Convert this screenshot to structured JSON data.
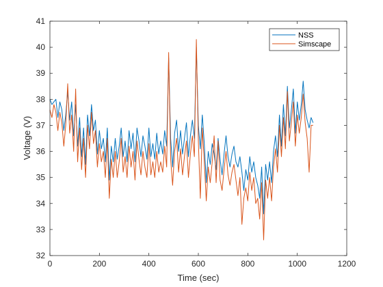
{
  "chart_data": {
    "type": "line",
    "title": "",
    "xlabel": "Time (sec)",
    "ylabel": "Voltage (V)",
    "xlim": [
      0,
      1200
    ],
    "ylim": [
      32,
      41
    ],
    "xticks": [
      0,
      200,
      400,
      600,
      800,
      1000,
      1200
    ],
    "yticks": [
      32,
      33,
      34,
      35,
      36,
      37,
      38,
      39,
      40,
      41
    ],
    "grid": false,
    "legend_position": "top-right",
    "series": [
      {
        "name": "NSS",
        "color": "#0072BD",
        "x": [
          0,
          8,
          16,
          24,
          32,
          40,
          48,
          56,
          64,
          72,
          80,
          88,
          96,
          104,
          112,
          120,
          128,
          136,
          144,
          152,
          160,
          168,
          176,
          184,
          192,
          200,
          208,
          216,
          224,
          232,
          240,
          248,
          256,
          264,
          272,
          280,
          288,
          296,
          304,
          312,
          320,
          328,
          336,
          344,
          352,
          360,
          368,
          376,
          384,
          392,
          400,
          408,
          416,
          424,
          432,
          440,
          448,
          456,
          464,
          472,
          480,
          488,
          496,
          504,
          512,
          520,
          528,
          536,
          544,
          552,
          560,
          568,
          576,
          584,
          592,
          600,
          608,
          616,
          624,
          632,
          640,
          648,
          656,
          664,
          672,
          680,
          688,
          696,
          704,
          712,
          720,
          728,
          736,
          744,
          752,
          760,
          768,
          776,
          784,
          792,
          800,
          808,
          816,
          824,
          832,
          840,
          848,
          856,
          864,
          872,
          880,
          888,
          896,
          904,
          912,
          920,
          928,
          936,
          944,
          952,
          960,
          968,
          976,
          984,
          992,
          1000,
          1008,
          1016,
          1024,
          1032,
          1040,
          1048,
          1056,
          1064
        ],
        "y": [
          38.0,
          37.8,
          37.9,
          38.0,
          37.3,
          37.9,
          37.6,
          36.8,
          37.4,
          38.3,
          37.2,
          37.9,
          36.6,
          37.8,
          36.2,
          37.3,
          35.8,
          36.9,
          35.5,
          37.4,
          36.6,
          37.8,
          36.8,
          37.2,
          35.9,
          36.8,
          36.1,
          36.5,
          35.6,
          36.9,
          34.9,
          36.2,
          35.6,
          36.5,
          35.7,
          36.2,
          36.9,
          35.8,
          36.4,
          35.6,
          36.8,
          36.1,
          36.7,
          35.6,
          36.9,
          36.4,
          35.8,
          36.6,
          36.2,
          35.7,
          36.9,
          35.8,
          36.3,
          35.7,
          36.7,
          35.9,
          36.4,
          35.9,
          36.8,
          36.2,
          39.6,
          36.5,
          35.4,
          36.7,
          37.2,
          36.0,
          36.8,
          35.9,
          36.5,
          37.1,
          35.8,
          36.6,
          37.2,
          36.5,
          40.0,
          37.0,
          36.1,
          37.4,
          36.3,
          34.8,
          36.0,
          35.5,
          36.3,
          35.9,
          35.3,
          36.5,
          35.7,
          35.1,
          35.9,
          36.6,
          35.8,
          35.4,
          35.9,
          36.2,
          35.6,
          35.4,
          35.8,
          35.2,
          34.5,
          35.3,
          34.9,
          35.8,
          35.2,
          35.6,
          35.0,
          34.7,
          34.2,
          35.4,
          33.6,
          35.5,
          34.9,
          35.6,
          34.8,
          36.0,
          36.6,
          35.8,
          37.4,
          36.2,
          37.8,
          36.6,
          38.5,
          36.9,
          37.6,
          38.4,
          36.7,
          37.9,
          37.2,
          37.8,
          38.7,
          37.6,
          37.2,
          36.9,
          37.3,
          37.1
        ],
        "note_unused": ""
      },
      {
        "name": "Simscape",
        "color": "#D95319",
        "x": [
          0,
          8,
          16,
          24,
          32,
          40,
          48,
          56,
          64,
          72,
          80,
          88,
          96,
          104,
          112,
          120,
          128,
          136,
          144,
          152,
          160,
          168,
          176,
          184,
          192,
          200,
          208,
          216,
          224,
          232,
          240,
          248,
          256,
          264,
          272,
          280,
          288,
          296,
          304,
          312,
          320,
          328,
          336,
          344,
          352,
          360,
          368,
          376,
          384,
          392,
          400,
          408,
          416,
          424,
          432,
          440,
          448,
          456,
          464,
          472,
          480,
          488,
          496,
          504,
          512,
          520,
          528,
          536,
          544,
          552,
          560,
          568,
          576,
          584,
          592,
          600,
          608,
          616,
          624,
          632,
          640,
          648,
          656,
          664,
          672,
          680,
          688,
          696,
          704,
          712,
          720,
          728,
          736,
          744,
          752,
          760,
          768,
          776,
          784,
          792,
          800,
          808,
          816,
          824,
          832,
          840,
          848,
          856,
          864,
          872,
          880,
          888,
          896,
          904,
          912,
          920,
          928,
          936,
          944,
          952,
          960,
          968,
          976,
          984,
          992,
          1000,
          1008,
          1016,
          1024,
          1032,
          1040,
          1048,
          1056,
          1064
        ],
        "y": [
          37.6,
          37.3,
          37.8,
          37.5,
          36.8,
          37.5,
          37.1,
          36.2,
          37.0,
          38.6,
          36.7,
          37.4,
          36.0,
          38.4,
          35.6,
          36.9,
          35.3,
          36.5,
          35.0,
          37.0,
          36.1,
          37.5,
          36.3,
          36.8,
          35.4,
          36.3,
          35.6,
          36.0,
          35.0,
          36.5,
          34.2,
          35.7,
          35.0,
          36.0,
          35.0,
          35.6,
          36.5,
          35.2,
          35.8,
          35.0,
          36.2,
          35.4,
          36.0,
          34.9,
          36.4,
          35.7,
          35.1,
          36.0,
          35.4,
          35.0,
          36.3,
          35.1,
          35.6,
          35.0,
          36.0,
          35.2,
          35.6,
          35.2,
          36.2,
          35.4,
          39.8,
          35.7,
          34.7,
          36.0,
          36.5,
          35.2,
          36.1,
          35.1,
          35.8,
          36.4,
          35.0,
          35.9,
          36.6,
          35.8,
          40.3,
          36.4,
          34.2,
          36.9,
          35.6,
          34.1,
          35.4,
          34.8,
          35.6,
          36.6,
          34.8,
          36.4,
          34.9,
          34.5,
          35.3,
          36.0,
          35.1,
          34.7,
          35.2,
          35.5,
          34.9,
          34.3,
          35.0,
          33.2,
          34.2,
          34.6,
          34.1,
          35.2,
          34.5,
          35.0,
          34.0,
          34.2,
          33.4,
          34.8,
          32.6,
          34.9,
          34.2,
          35.0,
          34.1,
          35.4,
          36.1,
          35.2,
          37.0,
          35.8,
          37.3,
          36.1,
          38.3,
          36.4,
          37.1,
          37.9,
          36.2,
          37.4,
          36.7,
          37.3,
          38.2,
          37.1,
          36.5,
          35.2,
          37.0,
          37.0
        ],
        "note_unused": ""
      }
    ]
  }
}
